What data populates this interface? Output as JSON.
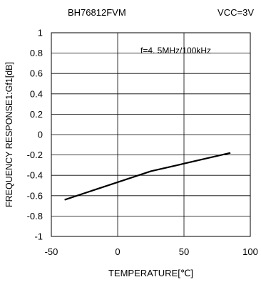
{
  "chart_data": {
    "type": "line",
    "title_left": "BH76812FVM",
    "title_right": "VCC=3V",
    "annotation": "f=4. 5MHz/100kHz",
    "xlabel": "TEMPERATURE[℃]",
    "ylabel": "FREQUENCY RESPONSE1:Gf1[dB]",
    "xlim": [
      -50,
      100
    ],
    "ylim": [
      -1,
      1
    ],
    "x_ticks": [
      -50,
      0,
      50,
      100
    ],
    "x_tick_labels": [
      "-50",
      "0",
      "50",
      "100"
    ],
    "y_ticks": [
      1,
      0.8,
      0.6,
      0.4,
      0.2,
      0,
      -0.2,
      -0.4,
      -0.6,
      -0.8,
      -1
    ],
    "y_tick_labels": [
      "1",
      "0.8",
      "0.6",
      "0.4",
      "0.2",
      "0",
      "-0.2",
      "-0.4",
      "-0.6",
      "-0.8",
      "-1"
    ],
    "grid": true,
    "series": [
      {
        "x": [
          -40,
          25,
          85
        ],
        "y": [
          -0.64,
          -0.36,
          -0.18
        ]
      }
    ]
  }
}
